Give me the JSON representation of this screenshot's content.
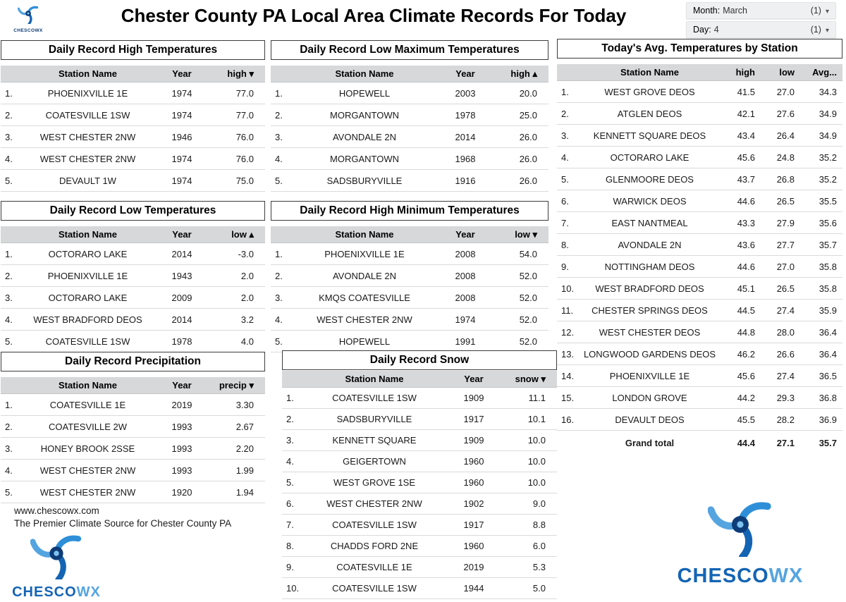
{
  "header": {
    "title": "Chester County PA Local Area Climate Records For Today",
    "filters": [
      {
        "label": "Month:",
        "value": "March",
        "count": "(1)"
      },
      {
        "label": "Day:",
        "value": "4",
        "count": "(1)"
      }
    ]
  },
  "icons": {
    "caret_down": "▾"
  },
  "brand": {
    "full": "CHESCOWX",
    "primary": "CHESCO",
    "secondary": "WX",
    "color_dark": "#1464b4",
    "color_light": "#54a4e0",
    "footer_url": "www.chescowx.com",
    "footer_tagline": "The Premier Climate Source for Chester County PA"
  },
  "tables": {
    "record_high": {
      "title": "Daily Record High Temperatures",
      "columns": [
        {
          "label": "Station Name"
        },
        {
          "label": "Year"
        },
        {
          "label": "high",
          "arrow": "▾"
        }
      ],
      "rows": [
        [
          "1.",
          "PHOENIXVILLE 1E",
          "1974",
          "77.0"
        ],
        [
          "2.",
          "COATESVILLE 1SW",
          "1974",
          "77.0"
        ],
        [
          "3.",
          "WEST CHESTER 2NW",
          "1946",
          "76.0"
        ],
        [
          "4.",
          "WEST CHESTER 2NW",
          "1974",
          "76.0"
        ],
        [
          "5.",
          "DEVAULT 1W",
          "1974",
          "75.0"
        ]
      ]
    },
    "record_low": {
      "title": "Daily Record Low Temperatures",
      "columns": [
        {
          "label": "Station Name"
        },
        {
          "label": "Year"
        },
        {
          "label": "low",
          "arrow": "▴"
        }
      ],
      "rows": [
        [
          "1.",
          "OCTORARO LAKE",
          "2014",
          "-3.0"
        ],
        [
          "2.",
          "PHOENIXVILLE 1E",
          "1943",
          "2.0"
        ],
        [
          "3.",
          "OCTORARO LAKE",
          "2009",
          "2.0"
        ],
        [
          "4.",
          "WEST BRADFORD DEOS",
          "2014",
          "3.2"
        ],
        [
          "5.",
          "COATESVILLE 1SW",
          "1978",
          "4.0"
        ]
      ]
    },
    "record_precip": {
      "title": "Daily Record Precipitation",
      "columns": [
        {
          "label": "Station Name"
        },
        {
          "label": "Year"
        },
        {
          "label": "precip",
          "arrow": "▾"
        }
      ],
      "rows": [
        [
          "1.",
          "COATESVILLE 1E",
          "2019",
          "3.30"
        ],
        [
          "2.",
          "COATESVILLE 2W",
          "1993",
          "2.67"
        ],
        [
          "3.",
          "HONEY BROOK 2SSE",
          "1993",
          "2.20"
        ],
        [
          "4.",
          "WEST CHESTER 2NW",
          "1993",
          "1.99"
        ],
        [
          "5.",
          "WEST CHESTER 2NW",
          "1920",
          "1.94"
        ]
      ]
    },
    "record_low_max": {
      "title": "Daily Record Low Maximum Temperatures",
      "columns": [
        {
          "label": "Station Name"
        },
        {
          "label": "Year"
        },
        {
          "label": "high",
          "arrow": "▴"
        }
      ],
      "rows": [
        [
          "1.",
          "HOPEWELL",
          "2003",
          "20.0"
        ],
        [
          "2.",
          "MORGANTOWN",
          "1978",
          "25.0"
        ],
        [
          "3.",
          "AVONDALE 2N",
          "2014",
          "26.0"
        ],
        [
          "4.",
          "MORGANTOWN",
          "1968",
          "26.0"
        ],
        [
          "5.",
          "SADSBURYVILLE",
          "1916",
          "26.0"
        ]
      ]
    },
    "record_high_min": {
      "title": "Daily Record High Minimum Temperatures",
      "columns": [
        {
          "label": "Station Name"
        },
        {
          "label": "Year"
        },
        {
          "label": "low",
          "arrow": "▾"
        }
      ],
      "rows": [
        [
          "1.",
          "PHOENIXVILLE 1E",
          "2008",
          "54.0"
        ],
        [
          "2.",
          "AVONDALE 2N",
          "2008",
          "52.0"
        ],
        [
          "3.",
          "KMQS COATESVILLE",
          "2008",
          "52.0"
        ],
        [
          "4.",
          "WEST CHESTER 2NW",
          "1974",
          "52.0"
        ],
        [
          "5.",
          "HOPEWELL",
          "1991",
          "52.0"
        ]
      ]
    },
    "record_snow": {
      "title": "Daily Record Snow",
      "columns": [
        {
          "label": "Station Name"
        },
        {
          "label": "Year"
        },
        {
          "label": "snow",
          "arrow": "▾"
        }
      ],
      "rows": [
        [
          "1.",
          "COATESVILLE 1SW",
          "1909",
          "11.1"
        ],
        [
          "2.",
          "SADSBURYVILLE",
          "1917",
          "10.1"
        ],
        [
          "3.",
          "KENNETT SQUARE",
          "1909",
          "10.0"
        ],
        [
          "4.",
          "GEIGERTOWN",
          "1960",
          "10.0"
        ],
        [
          "5.",
          "WEST GROVE 1SE",
          "1960",
          "10.0"
        ],
        [
          "6.",
          "WEST CHESTER 2NW",
          "1902",
          "9.0"
        ],
        [
          "7.",
          "COATESVILLE 1SW",
          "1917",
          "8.8"
        ],
        [
          "8.",
          "CHADDS FORD 2NE",
          "1960",
          "6.0"
        ],
        [
          "9.",
          "COATESVILLE 1E",
          "2019",
          "5.3"
        ],
        [
          "10.",
          "COATESVILLE 1SW",
          "1944",
          "5.0"
        ]
      ]
    },
    "todays_avg": {
      "title": "Today's Avg. Temperatures by Station",
      "columns": [
        {
          "label": "Station Name"
        },
        {
          "label": "high"
        },
        {
          "label": "low"
        },
        {
          "label": "Avg..."
        }
      ],
      "rows": [
        [
          "1.",
          "WEST GROVE DEOS",
          "41.5",
          "27.0",
          "34.3"
        ],
        [
          "2.",
          "ATGLEN DEOS",
          "42.1",
          "27.6",
          "34.9"
        ],
        [
          "3.",
          "KENNETT SQUARE DEOS",
          "43.4",
          "26.4",
          "34.9"
        ],
        [
          "4.",
          "OCTORARO LAKE",
          "45.6",
          "24.8",
          "35.2"
        ],
        [
          "5.",
          "GLENMOORE DEOS",
          "43.7",
          "26.8",
          "35.2"
        ],
        [
          "6.",
          "WARWICK DEOS",
          "44.6",
          "26.5",
          "35.5"
        ],
        [
          "7.",
          "EAST NANTMEAL",
          "43.3",
          "27.9",
          "35.6"
        ],
        [
          "8.",
          "AVONDALE 2N",
          "43.6",
          "27.7",
          "35.7"
        ],
        [
          "9.",
          "NOTTINGHAM DEOS",
          "44.6",
          "27.0",
          "35.8"
        ],
        [
          "10.",
          "WEST BRADFORD DEOS",
          "45.1",
          "26.5",
          "35.8"
        ],
        [
          "11.",
          "CHESTER SPRINGS DEOS",
          "44.5",
          "27.4",
          "35.9"
        ],
        [
          "12.",
          "WEST CHESTER DEOS",
          "44.8",
          "28.0",
          "36.4"
        ],
        [
          "13.",
          "LONGWOOD GARDENS DEOS",
          "46.2",
          "26.6",
          "36.4"
        ],
        [
          "14.",
          "PHOENIXVILLE 1E",
          "45.6",
          "27.4",
          "36.5"
        ],
        [
          "15.",
          "LONDON GROVE",
          "44.2",
          "29.3",
          "36.8"
        ],
        [
          "16.",
          "DEVAULT DEOS",
          "45.5",
          "28.2",
          "36.9"
        ]
      ],
      "grand_total": {
        "label": "Grand total",
        "values": [
          "44.4",
          "27.1",
          "35.7"
        ]
      }
    }
  }
}
